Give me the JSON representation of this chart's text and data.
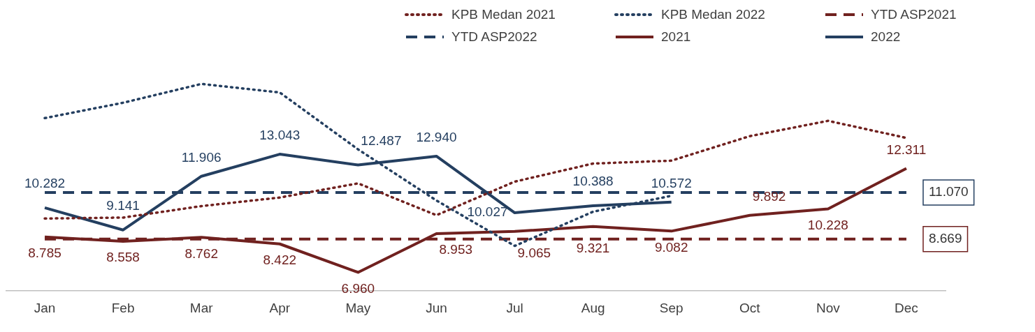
{
  "chart_data": {
    "type": "line",
    "categories": [
      "Jan",
      "Feb",
      "Mar",
      "Apr",
      "May",
      "Jun",
      "Jul",
      "Aug",
      "Sep",
      "Oct",
      "Nov",
      "Dec"
    ],
    "tick_labels": "x",
    "grid": false,
    "legend": "top",
    "marker": "none",
    "series": [
      {
        "name": "KPB Medan 2021",
        "color": "#70211f",
        "line_style": "dotted",
        "values": [
          9.73,
          9.78,
          10.37,
          10.81,
          11.54,
          9.9,
          11.63,
          12.56,
          12.71,
          13.97,
          14.76,
          13.88
        ]
      },
      {
        "name": "KPB Medan 2022",
        "color": "#243f60",
        "line_style": "dotted",
        "values": [
          14.9,
          15.69,
          16.66,
          16.22,
          13.29,
          10.66,
          8.32,
          10.08,
          10.9,
          null,
          null,
          null
        ]
      },
      {
        "name": "YTD ASP2021",
        "color": "#70211f",
        "line_style": "dashed",
        "values": [
          8.669,
          8.669,
          8.669,
          8.669,
          8.669,
          8.669,
          8.669,
          8.669,
          8.669,
          8.669,
          8.669,
          8.669
        ],
        "value_labels": [
          null,
          null,
          null,
          null,
          null,
          null,
          null,
          null,
          null,
          null,
          null,
          "8.669"
        ]
      },
      {
        "name": "YTD ASP2022",
        "color": "#243f60",
        "line_style": "dashed",
        "values": [
          11.07,
          11.07,
          11.07,
          11.07,
          11.07,
          11.07,
          11.07,
          11.07,
          11.07,
          11.07,
          11.07,
          11.07
        ],
        "value_labels": [
          null,
          null,
          null,
          null,
          null,
          null,
          null,
          null,
          null,
          null,
          null,
          "11.070"
        ]
      },
      {
        "name": "2021",
        "color": "#70211f",
        "line_style": "solid",
        "values": [
          8.785,
          8.558,
          8.762,
          8.422,
          6.96,
          8.953,
          9.065,
          9.321,
          9.082,
          9.892,
          10.228,
          12.311
        ],
        "value_labels": [
          "8.785",
          "8.558",
          "8.762",
          "8.422",
          "6.960",
          "8.953",
          "9.065",
          "9.321",
          "9.082",
          "9.892",
          "10.228",
          "12.311"
        ]
      },
      {
        "name": "2022",
        "color": "#243f60",
        "line_style": "solid",
        "values": [
          10.282,
          9.141,
          11.906,
          13.043,
          12.487,
          12.94,
          10.027,
          10.388,
          10.572,
          null,
          null,
          null
        ],
        "value_labels": [
          "10.282",
          "9.141",
          "11.906",
          "13.043",
          "12.487",
          "12.940",
          "10.027",
          "10.388",
          "10.572",
          null,
          null,
          null
        ]
      }
    ]
  }
}
